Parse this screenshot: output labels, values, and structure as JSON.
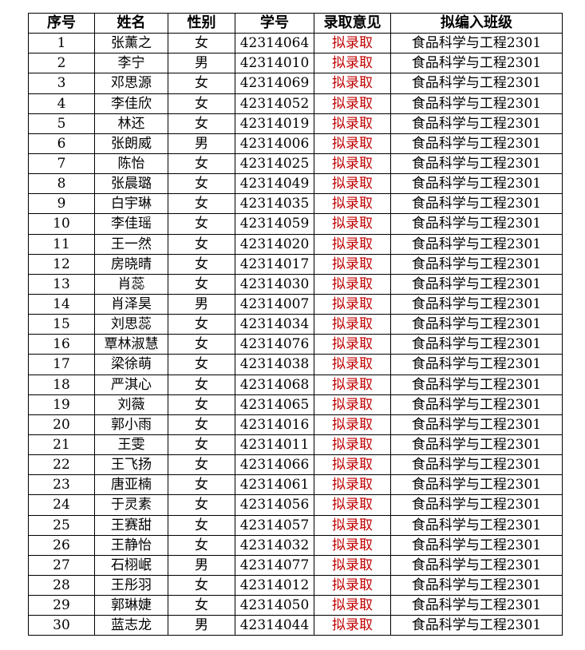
{
  "headers": [
    "序号",
    "姓名",
    "性别",
    "学号",
    "录取意见",
    "拟编入班级"
  ],
  "accent_color": "#c00000",
  "rows": [
    [
      "1",
      "张薰之",
      "女",
      "42314064",
      "拟录取",
      "食品科学与工程2301"
    ],
    [
      "2",
      "李宁",
      "男",
      "42314010",
      "拟录取",
      "食品科学与工程2301"
    ],
    [
      "3",
      "邓思源",
      "女",
      "42314069",
      "拟录取",
      "食品科学与工程2301"
    ],
    [
      "4",
      "李佳欣",
      "女",
      "42314052",
      "拟录取",
      "食品科学与工程2301"
    ],
    [
      "5",
      "林还",
      "女",
      "42314019",
      "拟录取",
      "食品科学与工程2301"
    ],
    [
      "6",
      "张朗威",
      "男",
      "42314006",
      "拟录取",
      "食品科学与工程2301"
    ],
    [
      "7",
      "陈怡",
      "女",
      "42314025",
      "拟录取",
      "食品科学与工程2301"
    ],
    [
      "8",
      "张晨璐",
      "女",
      "42314049",
      "拟录取",
      "食品科学与工程2301"
    ],
    [
      "9",
      "白宇琳",
      "女",
      "42314035",
      "拟录取",
      "食品科学与工程2301"
    ],
    [
      "10",
      "李佳瑶",
      "女",
      "42314059",
      "拟录取",
      "食品科学与工程2301"
    ],
    [
      "11",
      "王一然",
      "女",
      "42314020",
      "拟录取",
      "食品科学与工程2301"
    ],
    [
      "12",
      "房晓晴",
      "女",
      "42314017",
      "拟录取",
      "食品科学与工程2301"
    ],
    [
      "13",
      "肖蕊",
      "女",
      "42314030",
      "拟录取",
      "食品科学与工程2301"
    ],
    [
      "14",
      "肖泽昊",
      "男",
      "42314007",
      "拟录取",
      "食品科学与工程2301"
    ],
    [
      "15",
      "刘思蕊",
      "女",
      "42314034",
      "拟录取",
      "食品科学与工程2301"
    ],
    [
      "16",
      "覃林淑慧",
      "女",
      "42314076",
      "拟录取",
      "食品科学与工程2301"
    ],
    [
      "17",
      "梁徐萌",
      "女",
      "42314038",
      "拟录取",
      "食品科学与工程2301"
    ],
    [
      "18",
      "严淇心",
      "女",
      "42314068",
      "拟录取",
      "食品科学与工程2301"
    ],
    [
      "19",
      "刘薇",
      "女",
      "42314065",
      "拟录取",
      "食品科学与工程2301"
    ],
    [
      "20",
      "郭小雨",
      "女",
      "42314016",
      "拟录取",
      "食品科学与工程2301"
    ],
    [
      "21",
      "王雯",
      "女",
      "42314011",
      "拟录取",
      "食品科学与工程2301"
    ],
    [
      "22",
      "王飞扬",
      "女",
      "42314066",
      "拟录取",
      "食品科学与工程2301"
    ],
    [
      "23",
      "唐亚楠",
      "女",
      "42314061",
      "拟录取",
      "食品科学与工程2301"
    ],
    [
      "24",
      "于灵素",
      "女",
      "42314056",
      "拟录取",
      "食品科学与工程2301"
    ],
    [
      "25",
      "王赛甜",
      "女",
      "42314057",
      "拟录取",
      "食品科学与工程2301"
    ],
    [
      "26",
      "王静怡",
      "女",
      "42314032",
      "拟录取",
      "食品科学与工程2301"
    ],
    [
      "27",
      "石栩岷",
      "男",
      "42314077",
      "拟录取",
      "食品科学与工程2301"
    ],
    [
      "28",
      "王彤羽",
      "女",
      "42314012",
      "拟录取",
      "食品科学与工程2301"
    ],
    [
      "29",
      "郭琳婕",
      "女",
      "42314050",
      "拟录取",
      "食品科学与工程2301"
    ],
    [
      "30",
      "蓝志龙",
      "男",
      "42314044",
      "拟录取",
      "食品科学与工程2301"
    ]
  ]
}
